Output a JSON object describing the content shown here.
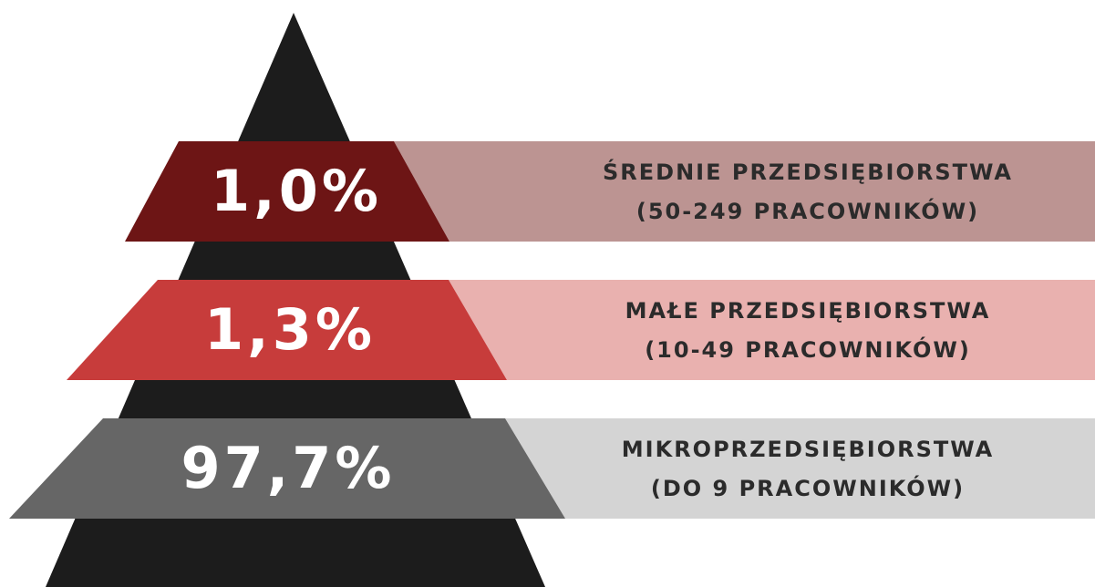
{
  "tiers": [
    {
      "value_label": "1,0%",
      "title": "ŚREDNIE PRZEDSIĘBIORSTWA",
      "subtitle": "(50-249 PRACOWNIKÓW)"
    },
    {
      "value_label": "1,3%",
      "title": "MAŁE PRZEDSIĘBIORSTWA",
      "subtitle": "(10-49 PRACOWNIKÓW)"
    },
    {
      "value_label": "97,7%",
      "title": "MIKROPRZEDSIĘBIORSTWA",
      "subtitle": "(DO 9 PRACOWNIKÓW)"
    }
  ]
}
